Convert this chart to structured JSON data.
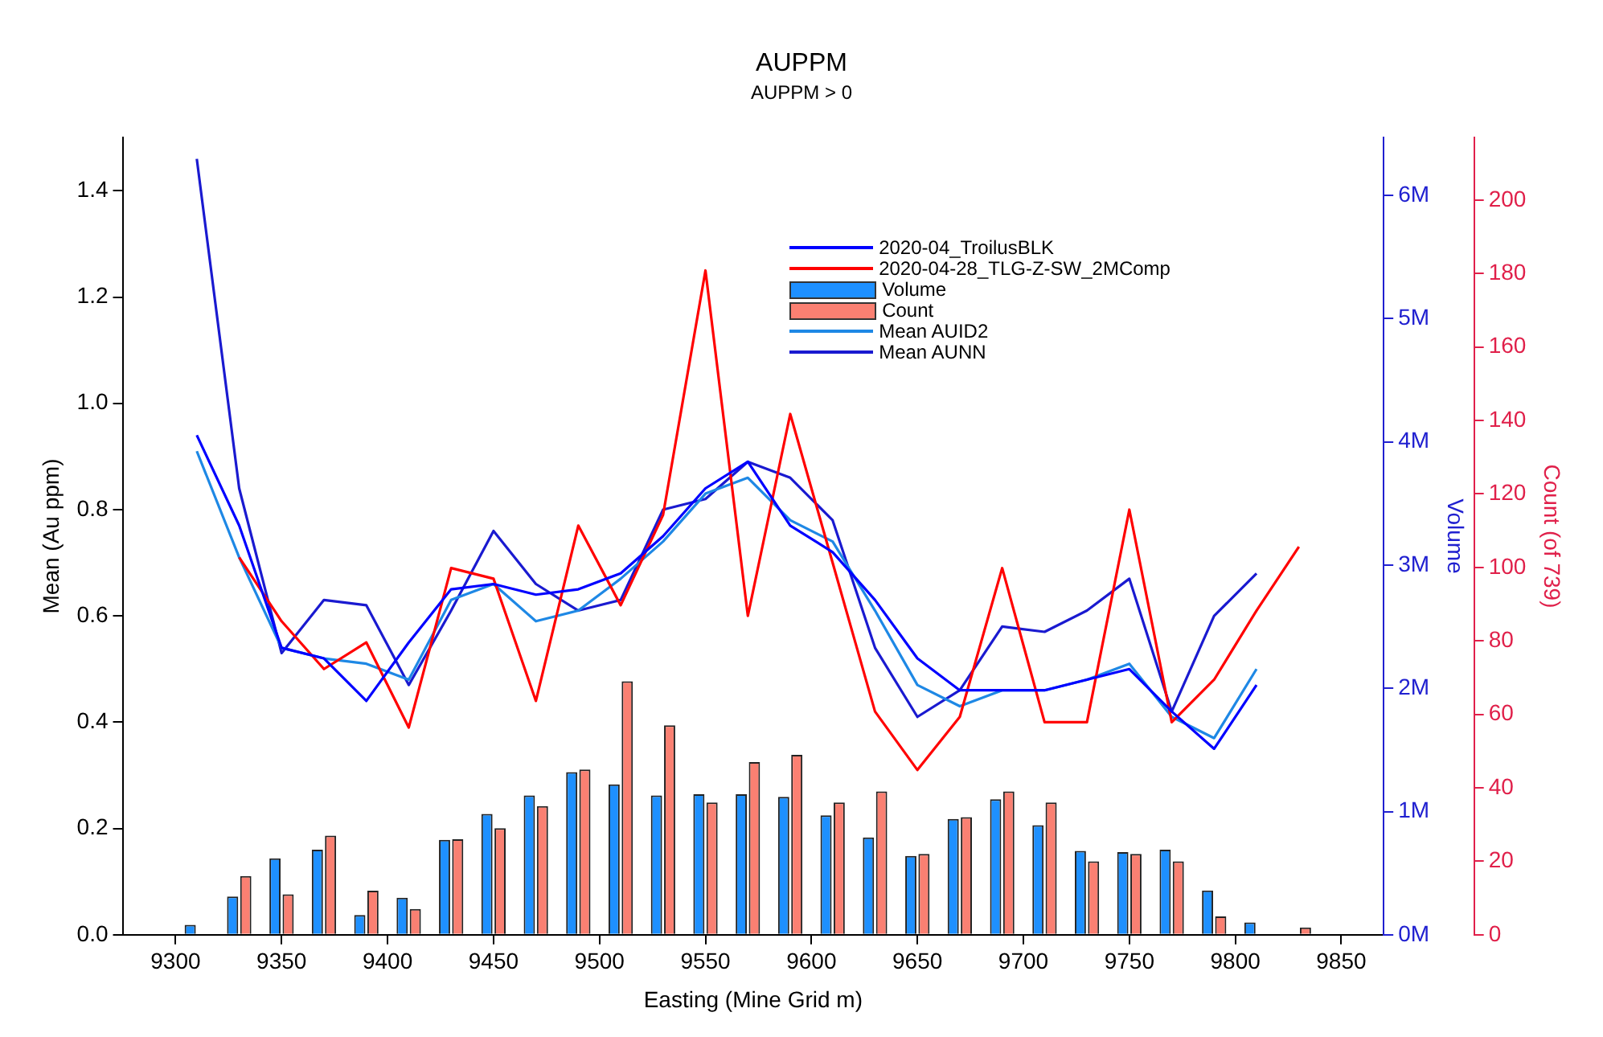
{
  "chart_data": {
    "type": "line",
    "title": "AUPPM",
    "subtitle": "AUPPM > 0",
    "xlabel": "Easting (Mine Grid m)",
    "ylabel": "Mean (Au ppm)",
    "y2label": "Volume",
    "y3label": "Count (of 739)",
    "x": [
      9310,
      9330,
      9350,
      9370,
      9390,
      9410,
      9430,
      9450,
      9470,
      9490,
      9510,
      9530,
      9550,
      9570,
      9590,
      9610,
      9630,
      9650,
      9670,
      9690,
      9710,
      9730,
      9750,
      9770,
      9790,
      9810,
      9830
    ],
    "series": [
      {
        "name": "2020-04_TroilusBLK",
        "color": "#0000ff",
        "type": "line",
        "values": [
          0.94,
          0.77,
          0.54,
          0.52,
          0.44,
          0.55,
          0.65,
          0.66,
          0.64,
          0.65,
          0.68,
          0.75,
          0.84,
          0.89,
          0.77,
          0.72,
          0.63,
          0.52,
          0.46,
          0.46,
          0.46,
          0.48,
          0.5,
          0.42,
          0.35,
          0.47,
          null
        ]
      },
      {
        "name": "2020-04-28_TLG-Z-SW_2MComp",
        "color": "#ff0000",
        "type": "line",
        "values": [
          null,
          0.71,
          0.59,
          0.5,
          0.55,
          0.39,
          0.69,
          0.67,
          0.44,
          0.77,
          0.62,
          0.79,
          1.25,
          0.6,
          0.98,
          0.7,
          0.42,
          0.31,
          0.41,
          0.69,
          0.4,
          0.4,
          0.8,
          0.4,
          0.48,
          0.61,
          0.73
        ]
      },
      {
        "name": "Volume",
        "color": "#1e90ff",
        "type": "bar",
        "axis": "y2",
        "values": [
          80000,
          310000,
          620000,
          690000,
          160000,
          300000,
          770000,
          980000,
          1130000,
          1320000,
          1220000,
          1130000,
          1140000,
          1140000,
          1120000,
          970000,
          790000,
          640000,
          940000,
          1100000,
          890000,
          680000,
          670000,
          690000,
          360000,
          100000,
          null
        ]
      },
      {
        "name": "Count",
        "color": "#fa8072",
        "type": "bar",
        "axis": "y3",
        "values": [
          null,
          16,
          11,
          27,
          12,
          7,
          26,
          29,
          35,
          45,
          69,
          57,
          36,
          47,
          49,
          36,
          39,
          22,
          32,
          39,
          36,
          20,
          22,
          20,
          5,
          null,
          2
        ]
      },
      {
        "name": "Mean AUID2",
        "color": "#1e88e5",
        "type": "line",
        "values": [
          0.91,
          0.71,
          0.54,
          0.52,
          0.51,
          0.48,
          0.63,
          0.66,
          0.59,
          0.61,
          0.67,
          0.74,
          0.83,
          0.86,
          0.78,
          0.74,
          0.61,
          0.47,
          0.43,
          0.46,
          0.46,
          0.48,
          0.51,
          0.41,
          0.37,
          0.5,
          null
        ]
      },
      {
        "name": "Mean AUNN",
        "color": "#1a1ad0",
        "type": "line",
        "values": [
          1.46,
          0.84,
          0.53,
          0.63,
          0.62,
          0.47,
          0.61,
          0.76,
          0.66,
          0.61,
          0.63,
          0.8,
          0.82,
          0.89,
          0.86,
          0.78,
          0.54,
          0.41,
          0.46,
          0.58,
          0.57,
          0.61,
          0.67,
          0.42,
          0.6,
          0.68,
          null
        ]
      }
    ],
    "xlim": [
      9275,
      9870
    ],
    "xticks": [
      9300,
      9350,
      9400,
      9450,
      9500,
      9550,
      9600,
      9650,
      9700,
      9750,
      9800,
      9850
    ],
    "ylim": [
      0,
      1.5
    ],
    "yticks": [
      {
        "value": 0,
        "label": "0.0"
      },
      {
        "value": 0.2,
        "label": "0.2"
      },
      {
        "value": 0.4,
        "label": "0.4"
      },
      {
        "value": 0.6,
        "label": "0.6"
      },
      {
        "value": 0.8,
        "label": "0.8"
      },
      {
        "value": 1,
        "label": "1.0"
      },
      {
        "value": 1.2,
        "label": "1.2"
      },
      {
        "value": 1.4,
        "label": "1.4"
      }
    ],
    "y2lim": [
      0,
      6470000
    ],
    "y2ticks": [
      {
        "value": 0,
        "label": "0M"
      },
      {
        "value": 1000000,
        "label": "1M"
      },
      {
        "value": 2000000,
        "label": "2M"
      },
      {
        "value": 3000000,
        "label": "3M"
      },
      {
        "value": 4000000,
        "label": "4M"
      },
      {
        "value": 5000000,
        "label": "5M"
      },
      {
        "value": 6000000,
        "label": "6M"
      }
    ],
    "y3lim": [
      0,
      217
    ],
    "y3ticks": [
      0,
      20,
      40,
      60,
      80,
      100,
      120,
      140,
      160,
      180,
      200
    ],
    "grid": false,
    "legend": "top right"
  }
}
